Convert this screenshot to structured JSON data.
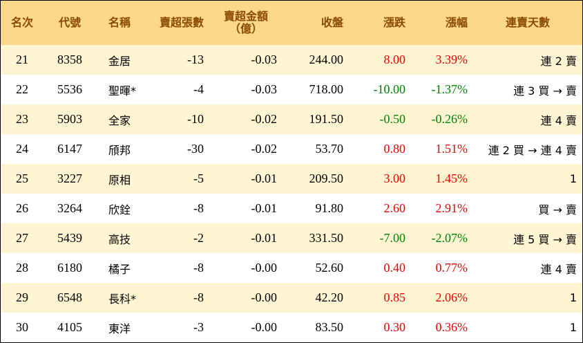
{
  "headers": [
    {
      "key": "rank",
      "lines": [
        "名次"
      ]
    },
    {
      "key": "code",
      "lines": [
        "代號"
      ]
    },
    {
      "key": "name",
      "lines": [
        "名稱"
      ]
    },
    {
      "key": "volume",
      "lines": [
        "賣超張數"
      ]
    },
    {
      "key": "amount",
      "lines": [
        "賣超金額",
        "（億）"
      ]
    },
    {
      "key": "close",
      "lines": [
        "收盤"
      ]
    },
    {
      "key": "change",
      "lines": [
        "漲跌"
      ]
    },
    {
      "key": "pct",
      "lines": [
        "漲幅"
      ]
    },
    {
      "key": "streak",
      "lines": [
        "連賣天數"
      ]
    }
  ],
  "colors": {
    "header_bg": "#fcd98a",
    "header_text": "#8a4a00",
    "odd_row": "#fff5d3",
    "up": "#e60000",
    "down": "#008000"
  },
  "rows": [
    {
      "rank": "21",
      "code": "8358",
      "name": "金居",
      "volume": "-13",
      "amount": "-0.03",
      "close": "244.00",
      "change": "8.00",
      "pct": "3.39%",
      "streak": "連 2 賣",
      "dir": "up"
    },
    {
      "rank": "22",
      "code": "5536",
      "name": "聖暉*",
      "volume": "-4",
      "amount": "-0.03",
      "close": "718.00",
      "change": "-10.00",
      "pct": "-1.37%",
      "streak": "連 3 買 → 賣",
      "dir": "down"
    },
    {
      "rank": "23",
      "code": "5903",
      "name": "全家",
      "volume": "-10",
      "amount": "-0.02",
      "close": "191.50",
      "change": "-0.50",
      "pct": "-0.26%",
      "streak": "連 4 賣",
      "dir": "down"
    },
    {
      "rank": "24",
      "code": "6147",
      "name": "頎邦",
      "volume": "-30",
      "amount": "-0.02",
      "close": "53.70",
      "change": "0.80",
      "pct": "1.51%",
      "streak": "連 2 買 → 連 4 賣",
      "dir": "up"
    },
    {
      "rank": "25",
      "code": "3227",
      "name": "原相",
      "volume": "-5",
      "amount": "-0.01",
      "close": "209.50",
      "change": "3.00",
      "pct": "1.45%",
      "streak": "1",
      "dir": "up"
    },
    {
      "rank": "26",
      "code": "3264",
      "name": "欣銓",
      "volume": "-8",
      "amount": "-0.01",
      "close": "91.80",
      "change": "2.60",
      "pct": "2.91%",
      "streak": "買 → 賣",
      "dir": "up"
    },
    {
      "rank": "27",
      "code": "5439",
      "name": "高技",
      "volume": "-2",
      "amount": "-0.01",
      "close": "331.50",
      "change": "-7.00",
      "pct": "-2.07%",
      "streak": "連 5 買 → 賣",
      "dir": "down"
    },
    {
      "rank": "28",
      "code": "6180",
      "name": "橘子",
      "volume": "-8",
      "amount": "-0.00",
      "close": "52.60",
      "change": "0.40",
      "pct": "0.77%",
      "streak": "連 4 賣",
      "dir": "up"
    },
    {
      "rank": "29",
      "code": "6548",
      "name": "長科*",
      "volume": "-8",
      "amount": "-0.00",
      "close": "42.20",
      "change": "0.85",
      "pct": "2.06%",
      "streak": "1",
      "dir": "up"
    },
    {
      "rank": "30",
      "code": "4105",
      "name": "東洋",
      "volume": "-3",
      "amount": "-0.00",
      "close": "83.50",
      "change": "0.30",
      "pct": "0.36%",
      "streak": "1",
      "dir": "up"
    }
  ]
}
